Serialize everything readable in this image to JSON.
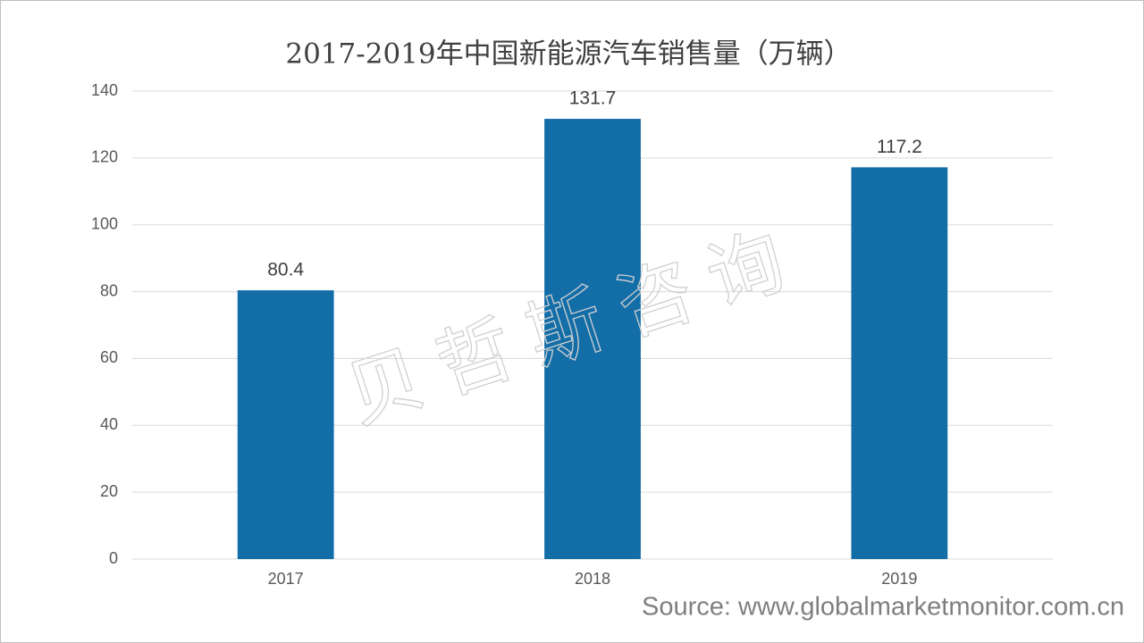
{
  "chart_data": {
    "type": "bar",
    "title": "2017-2019年中国新能源汽车销售量（万辆）",
    "categories": [
      "2017",
      "2018",
      "2019"
    ],
    "values": [
      80.4,
      131.7,
      117.2
    ],
    "color": "#136ea8",
    "ylim": [
      0,
      140
    ],
    "yticks": [
      0,
      20,
      40,
      60,
      80,
      100,
      120,
      140
    ],
    "grid": true,
    "watermark": "贝哲斯咨询",
    "source": "Source: www.globalmarketmonitor.com.cn"
  }
}
